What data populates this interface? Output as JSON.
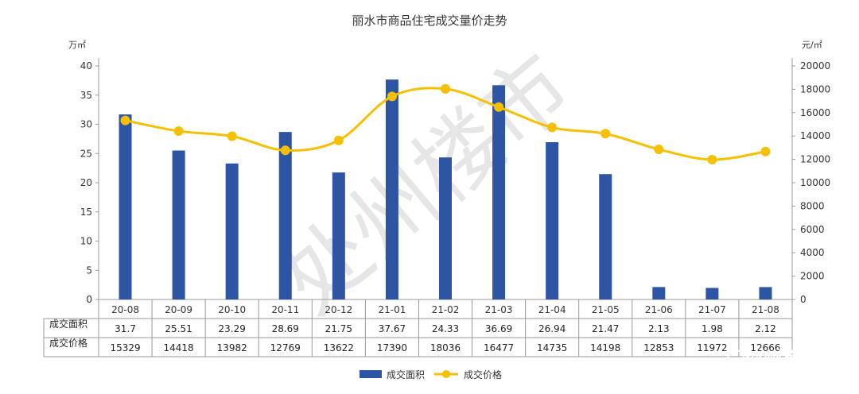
{
  "chart_data": {
    "type": "bar+line",
    "title": "丽水市商品住宅成交量价走势",
    "left_unit": "万㎡",
    "right_unit": "元/㎡",
    "categories": [
      "20-08",
      "20-09",
      "20-10",
      "20-11",
      "20-12",
      "21-01",
      "21-02",
      "21-03",
      "21-04",
      "21-05",
      "21-06",
      "21-07",
      "21-08"
    ],
    "series": [
      {
        "name": "成交面积",
        "kind": "bar",
        "axis": "left",
        "values": [
          31.7,
          25.51,
          23.29,
          28.69,
          21.75,
          37.67,
          24.33,
          36.69,
          26.94,
          21.47,
          2.13,
          1.98,
          2.12
        ]
      },
      {
        "name": "成交价格",
        "kind": "line",
        "axis": "right",
        "values": [
          15329,
          14418,
          13982,
          12769,
          13622,
          17390,
          18036,
          16477,
          14735,
          14198,
          12853,
          11972,
          12666
        ]
      }
    ],
    "left_axis": {
      "min": 0,
      "max": 40,
      "ticks": [
        0,
        5,
        10,
        15,
        20,
        25,
        30,
        35,
        40
      ]
    },
    "right_axis": {
      "min": 0,
      "max": 20000,
      "ticks": [
        0,
        2000,
        4000,
        6000,
        8000,
        10000,
        12000,
        14000,
        16000,
        18000,
        20000
      ]
    },
    "table": {
      "row_labels": [
        "成交面积",
        "成交价格"
      ],
      "rows": [
        [
          "31.7",
          "25.51",
          "23.29",
          "28.69",
          "21.75",
          "37.67",
          "24.33",
          "36.69",
          "26.94",
          "21.47",
          "2.13",
          "1.98",
          "2.12"
        ],
        [
          "15329",
          "14418",
          "13982",
          "12769",
          "13622",
          "17390",
          "18036",
          "16477",
          "14735",
          "14198",
          "12853",
          "11972",
          "12666"
        ]
      ]
    },
    "legend_position": "bottom-center",
    "grid": false,
    "colors": {
      "bar": "#2E55A3",
      "line": "#F5C000"
    }
  },
  "watermark": "处州楼市",
  "brand": "处州楼市"
}
